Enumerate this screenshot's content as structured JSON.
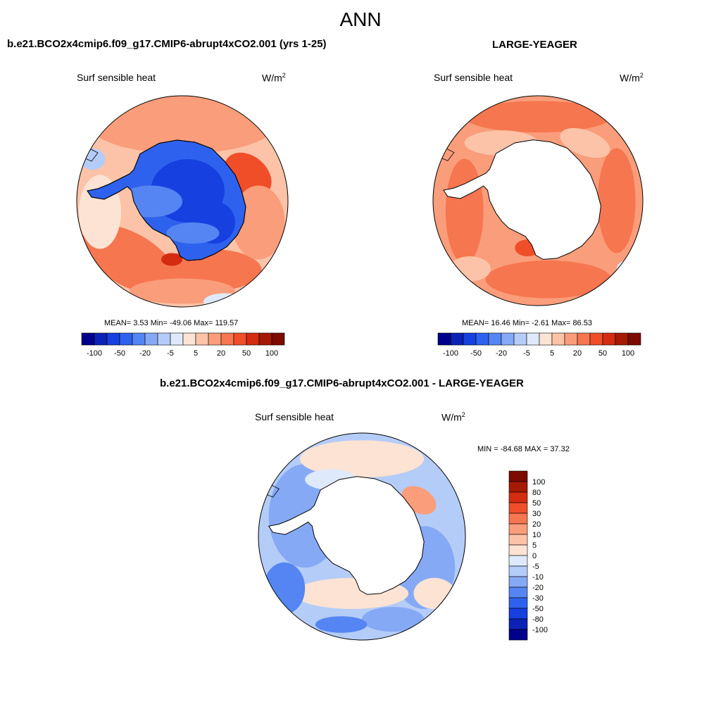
{
  "figure": {
    "title": "ANN"
  },
  "colors": {
    "levels": [
      "-100",
      "-80",
      "-50",
      "-30",
      "-20",
      "-10",
      "-5",
      "0",
      "5",
      "10",
      "20",
      "30",
      "50",
      "80",
      "100"
    ],
    "palette": [
      "#00008b",
      "#0a22b5",
      "#1640e0",
      "#2e62ee",
      "#5485f2",
      "#86a9f5",
      "#b4ccf8",
      "#deeafc",
      "#fde3d3",
      "#fcc3a8",
      "#fa9d7a",
      "#f6764f",
      "#ef4e29",
      "#d42b11",
      "#a51a03",
      "#7c0b00"
    ],
    "land": "#ffffff",
    "coast": "#000000"
  },
  "panels": {
    "case": {
      "title": "b.e21.BCO2x4cmip6.f09_g17.CMIP6-abrupt4xCO2.001 (yrs 1-25)",
      "field": "Surf sensible heat",
      "units_base": "W/m",
      "units_exp": "2",
      "stats": "MEAN=   3.53  Min= -49.06  Max= 119.57",
      "colorbar_labels": [
        "-100",
        "-50",
        "-20",
        "-5",
        "5",
        "20",
        "50",
        "100"
      ]
    },
    "obs": {
      "title": "LARGE-YEAGER",
      "field": "Surf sensible heat",
      "units_base": "W/m",
      "units_exp": "2",
      "stats": "MEAN=  16.46  Min=  -2.61  Max=  86.53",
      "colorbar_labels": [
        "-100",
        "-50",
        "-20",
        "-5",
        "5",
        "20",
        "50",
        "100"
      ]
    },
    "diff": {
      "title": "b.e21.BCO2x4cmip6.f09_g17.CMIP6-abrupt4xCO2.001 - LARGE-YEAGER",
      "field": "Surf sensible heat",
      "units_base": "W/m",
      "units_exp": "2",
      "stats": "MIN = -84.68 MAX =  37.32",
      "colorbar_labels": [
        "100",
        "80",
        "50",
        "30",
        "20",
        "10",
        "5",
        "0",
        "-5",
        "-10",
        "-20",
        "-30",
        "-50",
        "-80",
        "-100"
      ]
    }
  }
}
